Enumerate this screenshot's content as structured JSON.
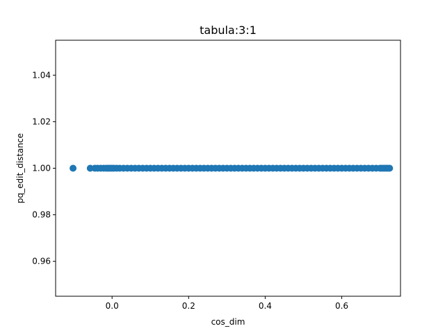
{
  "chart_data": {
    "type": "scatter",
    "title": "tabula:3:1",
    "xlabel": "cos_dim",
    "ylabel": "pq_edit_distance",
    "xlim": [
      -0.1475,
      0.7535
    ],
    "ylim": [
      0.945,
      1.055
    ],
    "x_ticks": [
      0.0,
      0.2,
      0.4,
      0.6
    ],
    "x_tick_labels": [
      "0.0",
      "0.2",
      "0.4",
      "0.6"
    ],
    "y_ticks": [
      0.96,
      0.98,
      1.0,
      1.02,
      1.04
    ],
    "y_tick_labels": [
      "0.96",
      "0.98",
      "1.00",
      "1.02",
      "1.04"
    ],
    "grid": false,
    "marker_color": "#1f77b4",
    "series": [
      {
        "x": [
          -0.102,
          -0.057,
          -0.045,
          -0.038,
          -0.03,
          -0.022,
          -0.015,
          -0.01,
          -0.005,
          0.0,
          0.005,
          0.012,
          0.02,
          0.03,
          0.04,
          0.05,
          0.06,
          0.07,
          0.08,
          0.09,
          0.1,
          0.11,
          0.12,
          0.13,
          0.14,
          0.15,
          0.16,
          0.17,
          0.18,
          0.19,
          0.2,
          0.21,
          0.22,
          0.23,
          0.24,
          0.25,
          0.26,
          0.27,
          0.28,
          0.29,
          0.3,
          0.31,
          0.32,
          0.33,
          0.34,
          0.35,
          0.36,
          0.37,
          0.38,
          0.39,
          0.4,
          0.41,
          0.42,
          0.43,
          0.44,
          0.45,
          0.46,
          0.47,
          0.48,
          0.49,
          0.5,
          0.51,
          0.52,
          0.53,
          0.54,
          0.55,
          0.56,
          0.57,
          0.58,
          0.59,
          0.6,
          0.61,
          0.62,
          0.63,
          0.64,
          0.65,
          0.66,
          0.67,
          0.68,
          0.69,
          0.7,
          0.705,
          0.71,
          0.715,
          0.72,
          0.725
        ],
        "y_constant": 1.0
      }
    ]
  }
}
